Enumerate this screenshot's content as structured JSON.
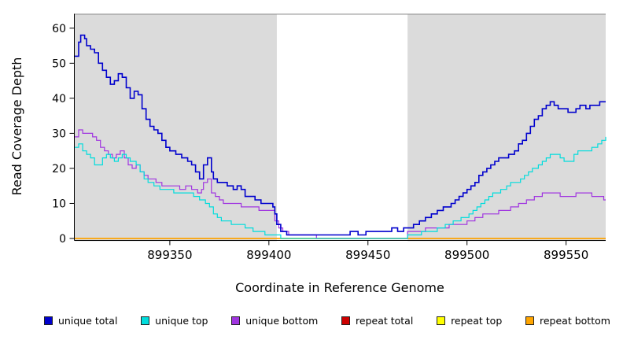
{
  "chart_data": {
    "type": "line",
    "step": true,
    "title": "",
    "xlabel": "Coordinate in Reference Genome",
    "ylabel": "Read Coverage Depth",
    "xlim": [
      899302,
      899570
    ],
    "ylim": [
      0,
      64
    ],
    "xticks": [
      899350,
      899400,
      899450,
      899500,
      899550
    ],
    "yticks": [
      0,
      10,
      20,
      30,
      40,
      50,
      60
    ],
    "grid": false,
    "legend_position": "bottom",
    "shaded_regions": [
      {
        "from": 899302,
        "to": 899404,
        "color": "#DBDBDB"
      },
      {
        "from": 899470,
        "to": 899570,
        "color": "#DBDBDB"
      }
    ],
    "region_border_color": "#8F8F8F",
    "series": [
      {
        "name": "repeat total",
        "color": "#CD0000",
        "width": 1.2,
        "points": [
          [
            899302,
            0
          ],
          [
            899570,
            0
          ]
        ]
      },
      {
        "name": "repeat top",
        "color": "#FFFF00",
        "width": 1.2,
        "points": [
          [
            899302,
            0
          ],
          [
            899570,
            0
          ]
        ]
      },
      {
        "name": "repeat bottom",
        "color": "#FFA500",
        "width": 1.6,
        "points": [
          [
            899302,
            0
          ],
          [
            899570,
            0
          ]
        ]
      },
      {
        "name": "unique bottom",
        "color": "#A035E0",
        "width": 1.2,
        "points": [
          [
            899302,
            29
          ],
          [
            899304,
            31
          ],
          [
            899306,
            30
          ],
          [
            899309,
            30
          ],
          [
            899311,
            29
          ],
          [
            899313,
            28
          ],
          [
            899315,
            26
          ],
          [
            899317,
            25
          ],
          [
            899319,
            24
          ],
          [
            899321,
            23
          ],
          [
            899323,
            24
          ],
          [
            899325,
            25
          ],
          [
            899327,
            23
          ],
          [
            899329,
            21
          ],
          [
            899331,
            20
          ],
          [
            899333,
            21
          ],
          [
            899335,
            19
          ],
          [
            899337,
            18
          ],
          [
            899339,
            17
          ],
          [
            899343,
            16
          ],
          [
            899346,
            15
          ],
          [
            899352,
            15
          ],
          [
            899355,
            14
          ],
          [
            899358,
            15
          ],
          [
            899361,
            14
          ],
          [
            899364,
            13
          ],
          [
            899366,
            14
          ],
          [
            899367,
            16
          ],
          [
            899369,
            17
          ],
          [
            899371,
            13
          ],
          [
            899373,
            12
          ],
          [
            899375,
            11
          ],
          [
            899377,
            10
          ],
          [
            899383,
            10
          ],
          [
            899386,
            9
          ],
          [
            899392,
            9
          ],
          [
            899395,
            8
          ],
          [
            899401,
            8
          ],
          [
            899403,
            5
          ],
          [
            899405,
            3
          ],
          [
            899407,
            2
          ],
          [
            899410,
            1
          ],
          [
            899418,
            1
          ],
          [
            899424,
            0
          ],
          [
            899470,
            2
          ],
          [
            899475,
            2
          ],
          [
            899479,
            3
          ],
          [
            899487,
            3
          ],
          [
            899491,
            4
          ],
          [
            899497,
            4
          ],
          [
            899500,
            5
          ],
          [
            899504,
            6
          ],
          [
            899508,
            7
          ],
          [
            899514,
            7
          ],
          [
            899516,
            8
          ],
          [
            899522,
            9
          ],
          [
            899526,
            10
          ],
          [
            899530,
            11
          ],
          [
            899534,
            12
          ],
          [
            899538,
            13
          ],
          [
            899544,
            13
          ],
          [
            899547,
            12
          ],
          [
            899553,
            12
          ],
          [
            899555,
            13
          ],
          [
            899560,
            13
          ],
          [
            899563,
            12
          ],
          [
            899567,
            12
          ],
          [
            899569,
            11
          ]
        ]
      },
      {
        "name": "unique top",
        "color": "#00DCDC",
        "width": 1.2,
        "points": [
          [
            899302,
            26
          ],
          [
            899304,
            27
          ],
          [
            899306,
            25
          ],
          [
            899308,
            24
          ],
          [
            899310,
            23
          ],
          [
            899312,
            21
          ],
          [
            899314,
            21
          ],
          [
            899316,
            23
          ],
          [
            899318,
            24
          ],
          [
            899320,
            23
          ],
          [
            899322,
            22
          ],
          [
            899324,
            23
          ],
          [
            899326,
            24
          ],
          [
            899328,
            23
          ],
          [
            899330,
            22
          ],
          [
            899333,
            21
          ],
          [
            899335,
            19
          ],
          [
            899337,
            17
          ],
          [
            899339,
            16
          ],
          [
            899342,
            15
          ],
          [
            899345,
            14
          ],
          [
            899350,
            14
          ],
          [
            899352,
            13
          ],
          [
            899358,
            13
          ],
          [
            899362,
            12
          ],
          [
            899365,
            11
          ],
          [
            899368,
            10
          ],
          [
            899370,
            9
          ],
          [
            899372,
            7
          ],
          [
            899374,
            6
          ],
          [
            899376,
            5
          ],
          [
            899379,
            5
          ],
          [
            899381,
            4
          ],
          [
            899386,
            4
          ],
          [
            899388,
            3
          ],
          [
            899392,
            2
          ],
          [
            899396,
            2
          ],
          [
            899398,
            1
          ],
          [
            899403,
            1
          ],
          [
            899406,
            0
          ],
          [
            899470,
            1
          ],
          [
            899474,
            1
          ],
          [
            899477,
            2
          ],
          [
            899481,
            2
          ],
          [
            899485,
            3
          ],
          [
            899489,
            4
          ],
          [
            899493,
            5
          ],
          [
            899497,
            6
          ],
          [
            899501,
            7
          ],
          [
            899503,
            8
          ],
          [
            899505,
            9
          ],
          [
            899507,
            10
          ],
          [
            899509,
            11
          ],
          [
            899511,
            12
          ],
          [
            899513,
            13
          ],
          [
            899517,
            14
          ],
          [
            899520,
            15
          ],
          [
            899522,
            16
          ],
          [
            899525,
            16
          ],
          [
            899527,
            17
          ],
          [
            899529,
            18
          ],
          [
            899531,
            19
          ],
          [
            899533,
            20
          ],
          [
            899536,
            21
          ],
          [
            899538,
            22
          ],
          [
            899540,
            23
          ],
          [
            899542,
            24
          ],
          [
            899545,
            24
          ],
          [
            899547,
            23
          ],
          [
            899549,
            22
          ],
          [
            899552,
            22
          ],
          [
            899554,
            24
          ],
          [
            899556,
            25
          ],
          [
            899561,
            25
          ],
          [
            899563,
            26
          ],
          [
            899566,
            27
          ],
          [
            899568,
            28
          ],
          [
            899570,
            29
          ]
        ]
      },
      {
        "name": "unique total",
        "color": "#0000CD",
        "width": 1.6,
        "points": [
          [
            899302,
            52
          ],
          [
            899304,
            56
          ],
          [
            899305,
            58
          ],
          [
            899307,
            57
          ],
          [
            899308,
            55
          ],
          [
            899310,
            54
          ],
          [
            899312,
            53
          ],
          [
            899314,
            50
          ],
          [
            899316,
            48
          ],
          [
            899318,
            46
          ],
          [
            899320,
            44
          ],
          [
            899322,
            45
          ],
          [
            899324,
            47
          ],
          [
            899326,
            46
          ],
          [
            899328,
            43
          ],
          [
            899330,
            40
          ],
          [
            899332,
            42
          ],
          [
            899334,
            41
          ],
          [
            899336,
            37
          ],
          [
            899338,
            34
          ],
          [
            899340,
            32
          ],
          [
            899342,
            31
          ],
          [
            899344,
            30
          ],
          [
            899346,
            28
          ],
          [
            899348,
            26
          ],
          [
            899350,
            25
          ],
          [
            899353,
            24
          ],
          [
            899356,
            23
          ],
          [
            899359,
            22
          ],
          [
            899361,
            21
          ],
          [
            899363,
            19
          ],
          [
            899365,
            17
          ],
          [
            899367,
            21
          ],
          [
            899369,
            23
          ],
          [
            899371,
            19
          ],
          [
            899372,
            17
          ],
          [
            899374,
            16
          ],
          [
            899377,
            16
          ],
          [
            899379,
            15
          ],
          [
            899382,
            14
          ],
          [
            899384,
            15
          ],
          [
            899386,
            14
          ],
          [
            899388,
            12
          ],
          [
            899391,
            12
          ],
          [
            899393,
            11
          ],
          [
            899396,
            10
          ],
          [
            899399,
            10
          ],
          [
            899402,
            9
          ],
          [
            899403,
            7
          ],
          [
            899404,
            4
          ],
          [
            899406,
            2
          ],
          [
            899409,
            1
          ],
          [
            899415,
            1
          ],
          [
            899422,
            1
          ],
          [
            899430,
            1
          ],
          [
            899437,
            1
          ],
          [
            899441,
            2
          ],
          [
            899445,
            1
          ],
          [
            899449,
            2
          ],
          [
            899454,
            2
          ],
          [
            899459,
            2
          ],
          [
            899462,
            3
          ],
          [
            899465,
            2
          ],
          [
            899468,
            3
          ],
          [
            899471,
            3
          ],
          [
            899473,
            4
          ],
          [
            899476,
            5
          ],
          [
            899479,
            6
          ],
          [
            899482,
            7
          ],
          [
            899485,
            8
          ],
          [
            899488,
            9
          ],
          [
            899492,
            10
          ],
          [
            899494,
            11
          ],
          [
            899496,
            12
          ],
          [
            899498,
            13
          ],
          [
            899500,
            14
          ],
          [
            899502,
            15
          ],
          [
            899504,
            16
          ],
          [
            899506,
            18
          ],
          [
            899508,
            19
          ],
          [
            899510,
            20
          ],
          [
            899512,
            21
          ],
          [
            899514,
            22
          ],
          [
            899516,
            23
          ],
          [
            899519,
            23
          ],
          [
            899521,
            24
          ],
          [
            899524,
            25
          ],
          [
            899526,
            27
          ],
          [
            899528,
            28
          ],
          [
            899530,
            30
          ],
          [
            899532,
            32
          ],
          [
            899534,
            34
          ],
          [
            899536,
            35
          ],
          [
            899538,
            37
          ],
          [
            899540,
            38
          ],
          [
            899542,
            39
          ],
          [
            899544,
            38
          ],
          [
            899546,
            37
          ],
          [
            899549,
            37
          ],
          [
            899551,
            36
          ],
          [
            899553,
            36
          ],
          [
            899555,
            37
          ],
          [
            899557,
            38
          ],
          [
            899560,
            37
          ],
          [
            899562,
            38
          ],
          [
            899565,
            38
          ],
          [
            899567,
            39
          ],
          [
            899570,
            39
          ]
        ]
      }
    ]
  },
  "legend": {
    "items": [
      {
        "label": "unique total",
        "color": "#0000CD"
      },
      {
        "label": "unique top",
        "color": "#00DCDC"
      },
      {
        "label": "unique bottom",
        "color": "#A035E0"
      },
      {
        "label": "repeat total",
        "color": "#CD0000"
      },
      {
        "label": "repeat top",
        "color": "#FFFF00"
      },
      {
        "label": "repeat bottom",
        "color": "#FFA500"
      }
    ]
  }
}
